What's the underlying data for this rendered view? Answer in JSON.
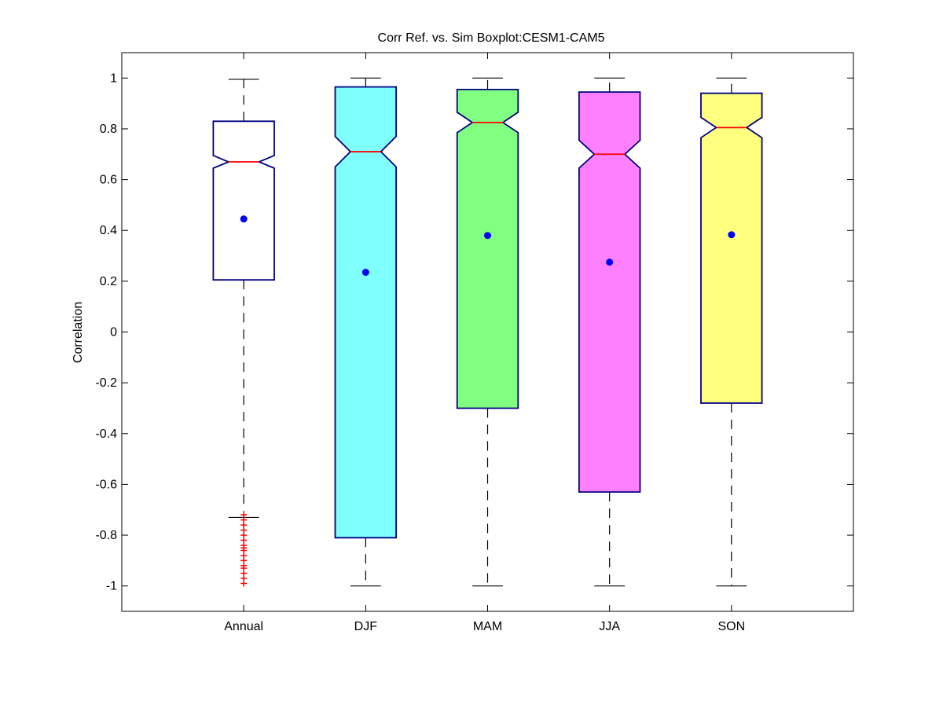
{
  "chart_data": {
    "type": "boxplot",
    "title": "Corr Ref. vs. Sim Boxplot:CESM1-CAM5",
    "xlabel": "",
    "ylabel": "Correlation",
    "ylim": [
      -1.1,
      1.1
    ],
    "yticks": [
      -1,
      -0.8,
      -0.6,
      -0.4,
      -0.2,
      0,
      0.2,
      0.4,
      0.6,
      0.8,
      1
    ],
    "ytick_labels": [
      "-1",
      "-0.8",
      "-0.6",
      "-0.4",
      "-0.2",
      "0",
      "0.2",
      "0.4",
      "0.6",
      "0.8",
      "1"
    ],
    "categories": [
      "Annual",
      "DJF",
      "MAM",
      "JJA",
      "SON"
    ],
    "notched": true,
    "grid": false,
    "boxes": [
      {
        "label": "Annual",
        "fill": "#ffffff",
        "whisker_low": -0.73,
        "q1": 0.205,
        "median": 0.67,
        "q3": 0.83,
        "whisker_high": 0.995,
        "notch_low": 0.645,
        "notch_high": 0.695,
        "mean": 0.445,
        "outliers": [
          -0.72,
          -0.74,
          -0.76,
          -0.78,
          -0.8,
          -0.82,
          -0.84,
          -0.85,
          -0.86,
          -0.88,
          -0.9,
          -0.92,
          -0.93,
          -0.95,
          -0.97,
          -0.99
        ]
      },
      {
        "label": "DJF",
        "fill": "#80ffff",
        "whisker_low": -1.0,
        "q1": -0.81,
        "median": 0.71,
        "q3": 0.965,
        "whisker_high": 1.0,
        "notch_low": 0.65,
        "notch_high": 0.77,
        "mean": 0.235,
        "outliers": []
      },
      {
        "label": "MAM",
        "fill": "#80ff80",
        "whisker_low": -1.0,
        "q1": -0.3,
        "median": 0.825,
        "q3": 0.955,
        "whisker_high": 1.0,
        "notch_low": 0.785,
        "notch_high": 0.865,
        "mean": 0.38,
        "outliers": []
      },
      {
        "label": "JJA",
        "fill": "#ff80ff",
        "whisker_low": -1.0,
        "q1": -0.63,
        "median": 0.7,
        "q3": 0.945,
        "whisker_high": 1.0,
        "notch_low": 0.645,
        "notch_high": 0.755,
        "mean": 0.275,
        "outliers": []
      },
      {
        "label": "SON",
        "fill": "#ffff80",
        "whisker_low": -1.0,
        "q1": -0.28,
        "median": 0.805,
        "q3": 0.94,
        "whisker_high": 1.0,
        "notch_low": 0.765,
        "notch_high": 0.845,
        "mean": 0.383,
        "outliers": []
      }
    ],
    "colors": {
      "box_edge": "#000080",
      "median": "#ff0000",
      "mean_marker": "#0000ff",
      "outlier": "#ff0000",
      "whisker": "#000000"
    }
  }
}
